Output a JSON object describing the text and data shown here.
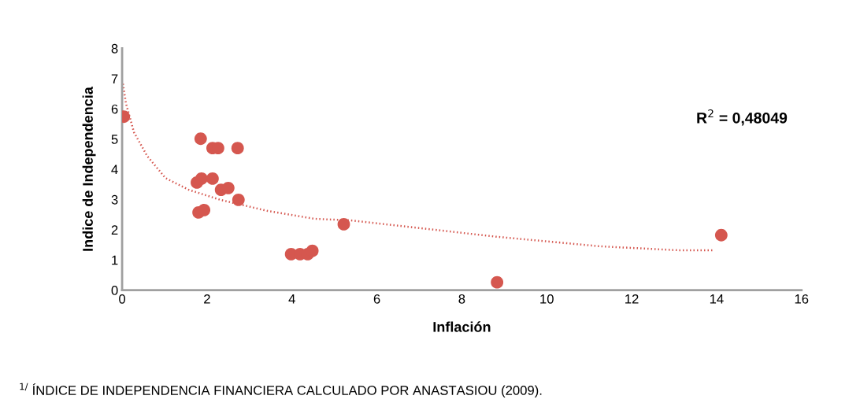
{
  "chart_data": {
    "type": "scatter",
    "xlabel": "Inflación",
    "ylabel": "Indice de Independencia",
    "xlim": [
      0,
      16
    ],
    "ylim": [
      0,
      8
    ],
    "xticks": [
      0,
      2,
      4,
      6,
      8,
      10,
      12,
      14,
      16
    ],
    "yticks": [
      0,
      1,
      2,
      3,
      4,
      5,
      6,
      7,
      8
    ],
    "grid": false,
    "legend": false,
    "marker": "circle",
    "series": [
      {
        "color": "#d5574f",
        "x": [
          0.04,
          1.85,
          2.13,
          2.26,
          2.72,
          1.76,
          1.87,
          2.13,
          2.33,
          2.5,
          2.74,
          1.8,
          1.93,
          5.22,
          3.98,
          4.19,
          4.37,
          4.48,
          8.83,
          14.11
        ],
        "values": [
          5.74,
          5.01,
          4.7,
          4.7,
          4.7,
          3.56,
          3.69,
          3.69,
          3.32,
          3.38,
          2.99,
          2.57,
          2.65,
          2.18,
          1.19,
          1.19,
          1.19,
          1.3,
          0.26,
          1.82
        ]
      },
      {
        "type": "line",
        "color": "#d5574f",
        "line_style": "dotted",
        "marker": "none",
        "x": [
          0.02,
          0.09,
          0.28,
          0.59,
          1.02,
          1.57,
          2.31,
          3.43,
          4.54,
          5.37,
          8.8,
          11.26,
          13.1,
          13.94
        ],
        "values": [
          6.83,
          6.18,
          5.22,
          4.44,
          3.71,
          3.32,
          2.99,
          2.62,
          2.36,
          2.31,
          1.77,
          1.45,
          1.32,
          1.32
        ]
      }
    ],
    "annotations": [
      "R$^{2}$ = 0,48049",
      "$^{1/}$ ÍNDICE DE INDEPENDENCIA FINANCIERA CALCULADO POR ANASTASIOU (2009)."
    ]
  }
}
